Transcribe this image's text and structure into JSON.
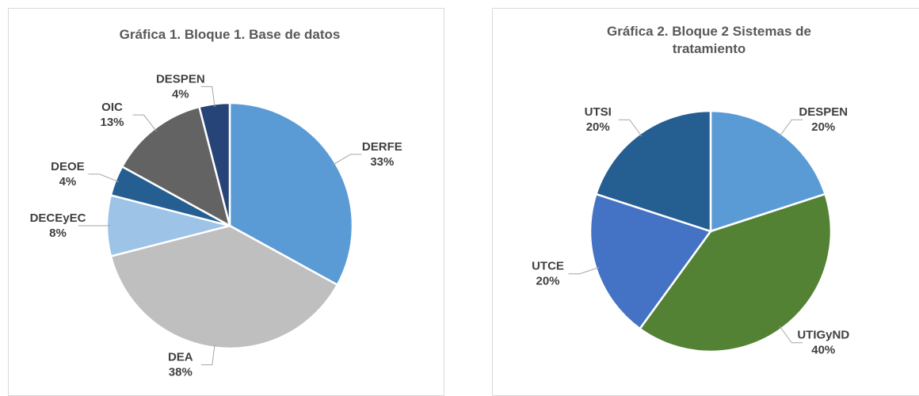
{
  "chart_data": [
    {
      "type": "pie",
      "title": "Gráfica 1. Bloque 1. Base de datos",
      "categories": [
        "DERFE",
        "DEA",
        "DECEyEC",
        "DEOE",
        "OIC",
        "DESPEN"
      ],
      "values": [
        33,
        38,
        8,
        4,
        13,
        4
      ],
      "value_labels": [
        "33%",
        "38%",
        "8%",
        "4%",
        "13%",
        "4%"
      ],
      "colors": [
        "#5b9bd5",
        "#bfbfbf",
        "#9dc3e6",
        "#255e91",
        "#636363",
        "#264478"
      ]
    },
    {
      "type": "pie",
      "title": "Gráfica 2.  Bloque 2  Sistemas de tratamiento",
      "categories": [
        "DESPEN",
        "UTIGyND",
        "UTCE",
        "UTSI"
      ],
      "values": [
        20,
        40,
        20,
        20
      ],
      "value_labels": [
        "20%",
        "40%",
        "20%",
        "20%"
      ],
      "colors": [
        "#5b9bd5",
        "#548235",
        "#4472c4",
        "#255e91"
      ]
    }
  ]
}
